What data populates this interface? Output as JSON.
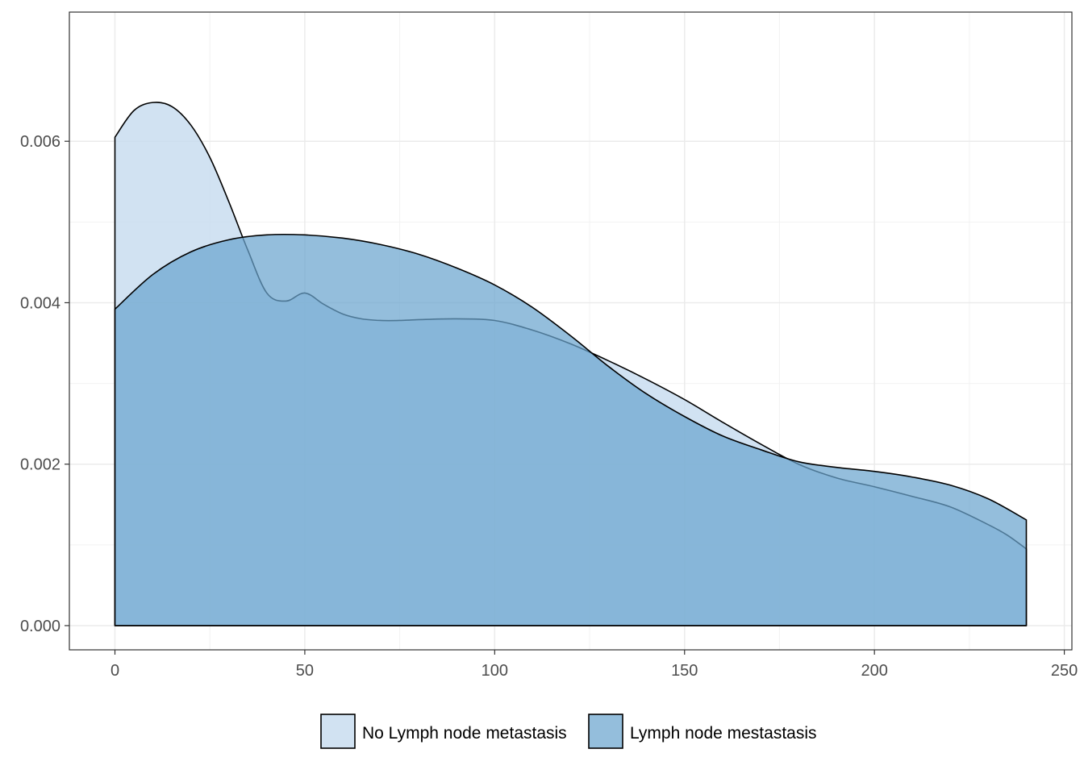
{
  "chart_data": {
    "type": "area",
    "title": "",
    "xlabel": "",
    "ylabel": "",
    "xlim": [
      -12,
      252
    ],
    "ylim": [
      -0.0003,
      0.0076
    ],
    "grid": true,
    "legend_position": "bottom",
    "x_ticks": [
      0,
      50,
      100,
      150,
      200,
      250
    ],
    "x_tick_labels": [
      "0",
      "50",
      "100",
      "150",
      "200",
      "250"
    ],
    "y_ticks": [
      0,
      0.002,
      0.004,
      0.006
    ],
    "y_tick_labels": [
      "0.000",
      "0.002",
      "0.004",
      "0.006"
    ],
    "series": [
      {
        "name": "No Lymph node metastasis",
        "color": "#c6dbef",
        "x": [
          0,
          5,
          10,
          15,
          20,
          25,
          30,
          35,
          40,
          45,
          50,
          55,
          60,
          65,
          70,
          75,
          80,
          90,
          100,
          110,
          120,
          130,
          140,
          150,
          160,
          170,
          180,
          190,
          200,
          210,
          220,
          230,
          235,
          240
        ],
        "values": [
          0.00605,
          0.00638,
          0.00648,
          0.00643,
          0.0062,
          0.0058,
          0.00525,
          0.00465,
          0.00412,
          0.00402,
          0.00412,
          0.00398,
          0.00386,
          0.0038,
          0.00378,
          0.00378,
          0.00379,
          0.0038,
          0.00378,
          0.00366,
          0.00349,
          0.00328,
          0.00305,
          0.0028,
          0.00252,
          0.00225,
          0.002,
          0.00183,
          0.00172,
          0.0016,
          0.00147,
          0.00125,
          0.00112,
          0.00095
        ]
      },
      {
        "name": "Lymph node mestastasis",
        "color": "#6ba5cf",
        "x": [
          0,
          10,
          20,
          30,
          40,
          50,
          60,
          70,
          80,
          90,
          100,
          110,
          120,
          130,
          140,
          150,
          160,
          170,
          180,
          190,
          200,
          210,
          220,
          230,
          240
        ],
        "values": [
          0.00392,
          0.00435,
          0.00463,
          0.00478,
          0.00484,
          0.00484,
          0.0048,
          0.00472,
          0.0046,
          0.00443,
          0.00422,
          0.00394,
          0.00359,
          0.00321,
          0.00287,
          0.00259,
          0.00235,
          0.00218,
          0.00203,
          0.00196,
          0.00191,
          0.00184,
          0.00174,
          0.00157,
          0.00131
        ]
      }
    ]
  }
}
